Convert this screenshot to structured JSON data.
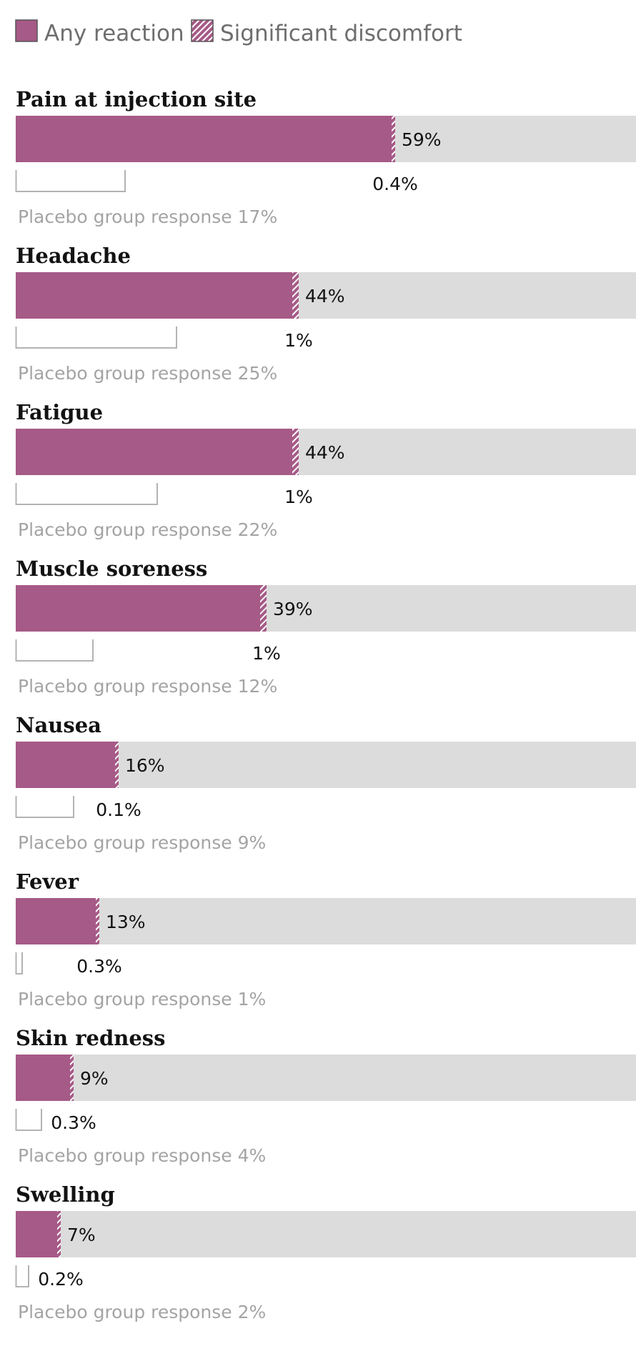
{
  "legend": {
    "any_reaction": "Any reaction",
    "significant_discomfort": "Significant discomfort"
  },
  "colors": {
    "bar": "#a65a87",
    "track": "#dcdcdc",
    "placebo_outline": "#b3b3b3"
  },
  "chart_data": {
    "type": "bar",
    "orientation": "horizontal",
    "xlim": [
      0,
      100
    ],
    "categories": [
      {
        "label": "Pain at injection site",
        "any_reaction": 59,
        "any_reaction_label": "59%",
        "significant_discomfort": 0.4,
        "significant_discomfort_label": "0.4%",
        "placebo": 17,
        "placebo_label": "Placebo group response 17%"
      },
      {
        "label": "Headache",
        "any_reaction": 44,
        "any_reaction_label": "44%",
        "significant_discomfort": 1,
        "significant_discomfort_label": "1%",
        "placebo": 25,
        "placebo_label": "Placebo group response 25%"
      },
      {
        "label": "Fatigue",
        "any_reaction": 44,
        "any_reaction_label": "44%",
        "significant_discomfort": 1,
        "significant_discomfort_label": "1%",
        "placebo": 22,
        "placebo_label": "Placebo group response 22%"
      },
      {
        "label": "Muscle soreness",
        "any_reaction": 39,
        "any_reaction_label": "39%",
        "significant_discomfort": 1,
        "significant_discomfort_label": "1%",
        "placebo": 12,
        "placebo_label": "Placebo group response 12%"
      },
      {
        "label": "Nausea",
        "any_reaction": 16,
        "any_reaction_label": "16%",
        "significant_discomfort": 0.1,
        "significant_discomfort_label": "0.1%",
        "placebo": 9,
        "placebo_label": "Placebo group response 9%"
      },
      {
        "label": "Fever",
        "any_reaction": 13,
        "any_reaction_label": "13%",
        "significant_discomfort": 0.3,
        "significant_discomfort_label": "0.3%",
        "placebo": 1,
        "placebo_label": "Placebo group response 1%"
      },
      {
        "label": "Skin redness",
        "any_reaction": 9,
        "any_reaction_label": "9%",
        "significant_discomfort": 0.3,
        "significant_discomfort_label": "0.3%",
        "placebo": 4,
        "placebo_label": "Placebo group response 4%"
      },
      {
        "label": "Swelling",
        "any_reaction": 7,
        "any_reaction_label": "7%",
        "significant_discomfort": 0.2,
        "significant_discomfort_label": "0.2%",
        "placebo": 2,
        "placebo_label": "Placebo group response 2%"
      }
    ]
  }
}
